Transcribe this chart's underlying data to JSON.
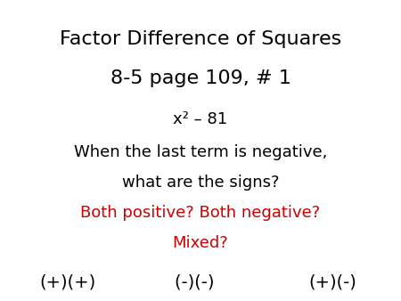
{
  "background_color": "#ffffff",
  "title_line1": "Factor Difference of Squares",
  "title_line2": "8-5 page 109, # 1",
  "title_fontsize": 16,
  "title_color": "#000000",
  "equation": "x² – 81",
  "equation_fontsize": 13,
  "equation_color": "#000000",
  "body_line1": "When the last term is negative,",
  "body_line2": "what are the signs?",
  "body_fontsize": 13,
  "body_color": "#000000",
  "red_line1": "Both positive? Both negative?",
  "red_line2": "Mixed?",
  "red_fontsize": 13,
  "red_color": "#cc0000",
  "choices_left": "(+)(+)",
  "choices_mid": "(-)(-)  ",
  "choices_right": "(+)(-)",
  "choices_fontsize": 14,
  "choices_color": "#000000"
}
